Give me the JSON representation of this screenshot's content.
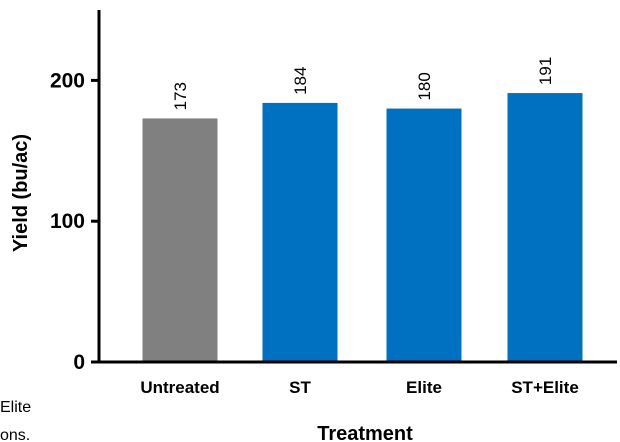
{
  "chart_data": {
    "type": "bar",
    "categories": [
      "Untreated",
      "ST",
      "Elite",
      "ST+Elite"
    ],
    "values": [
      173,
      184,
      180,
      191
    ],
    "data_labels": [
      "173",
      "184",
      "180",
      "191"
    ],
    "colors": [
      "#808080",
      "#0070c0",
      "#0070c0",
      "#0070c0"
    ],
    "ylim": [
      0,
      250
    ],
    "yticks": [
      0,
      100,
      200
    ],
    "ytick_labels": [
      "0",
      "100",
      "200"
    ],
    "ylabel": "Yield (bu/ac)",
    "xlabel": "Treatment",
    "grid": false,
    "legend": "none"
  },
  "fragments": [
    "Elite",
    "ons."
  ]
}
